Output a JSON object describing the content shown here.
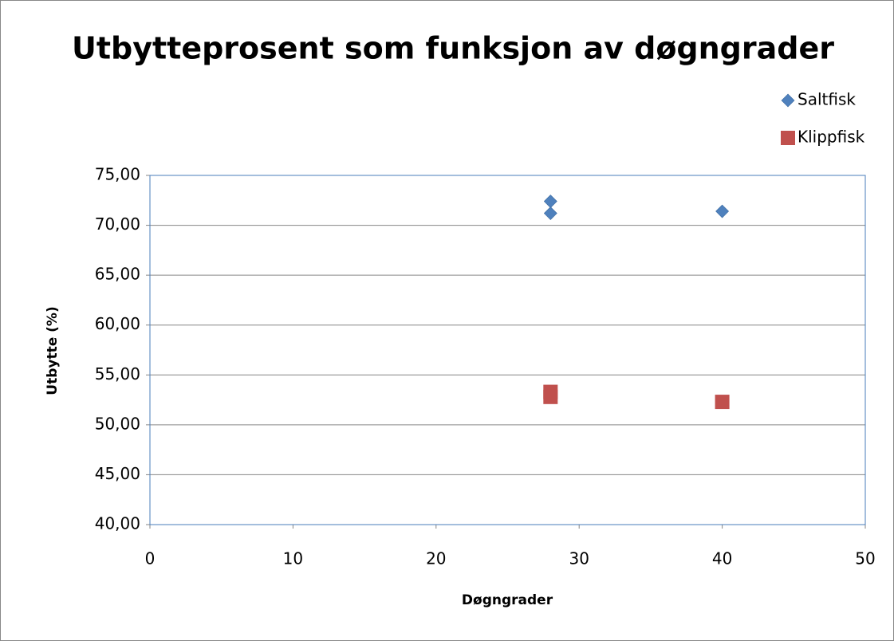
{
  "chart_data": {
    "type": "scatter",
    "title": "Utbytteprosent som funksjon av døgngrader",
    "x_label": "Døgngrader",
    "y_label": "Utbytte (%)",
    "series": [
      {
        "name": "Saltfisk",
        "color": "#4f81bd",
        "marker": "diamond",
        "x": [
          28,
          28,
          40
        ],
        "values": [
          72.4,
          71.2,
          71.4
        ]
      },
      {
        "name": "Klippfisk",
        "color": "#c0504d",
        "marker": "square",
        "x": [
          28,
          28,
          40
        ],
        "values": [
          53.3,
          52.8,
          52.3
        ]
      }
    ],
    "xlim": [
      0,
      50
    ],
    "xticks": [
      0,
      10,
      20,
      30,
      40,
      50
    ],
    "ylim": [
      40,
      75
    ],
    "yticks": [
      {
        "value": 40,
        "label": "40,00"
      },
      {
        "value": 45,
        "label": "45,00"
      },
      {
        "value": 50,
        "label": "50,00"
      },
      {
        "value": 55,
        "label": "55,00"
      },
      {
        "value": 60,
        "label": "60,00"
      },
      {
        "value": 65,
        "label": "65,00"
      },
      {
        "value": 70,
        "label": "70,00"
      },
      {
        "value": 75,
        "label": "75,00"
      }
    ],
    "grid": true,
    "legend": "right"
  }
}
